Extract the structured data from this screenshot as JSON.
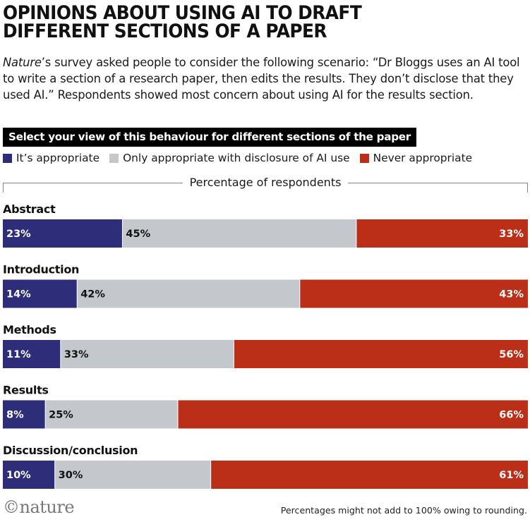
{
  "header": {
    "title_line1": "OPINIONS ABOUT USING AI TO DRAFT",
    "title_line2": "DIFFERENT SECTIONS OF A PAPER",
    "intro_italic": "Nature",
    "intro_rest": "’s survey asked people to consider the following scenario: “Dr Bloggs uses an AI tool to write a section of a research paper, then edits the results. They don’t disclose that they used AI.” Respondents showed most concern about using AI for the results section."
  },
  "question": "Select your view of this behaviour for different sections of the paper",
  "legend": [
    {
      "label": "It’s appropriate",
      "color": "#2d2d7a"
    },
    {
      "label": "Only appropriate with disclosure of AI use",
      "color": "#c4c8cc"
    },
    {
      "label": "Never appropriate",
      "color": "#bb2e18"
    }
  ],
  "footer": {
    "logo": "©nature",
    "note": "Percentages might not add to 100% owing to rounding."
  },
  "chart_data": {
    "type": "bar",
    "orientation": "horizontal",
    "stacked": true,
    "xlabel": "Percentage of respondents",
    "categories": [
      "Abstract",
      "Introduction",
      "Methods",
      "Results",
      "Discussion/conclusion"
    ],
    "series": [
      {
        "name": "It’s appropriate",
        "color": "#2d2d7a",
        "label_color": "#ffffff",
        "values": [
          23,
          14,
          11,
          8,
          10
        ]
      },
      {
        "name": "Only appropriate with disclosure of AI use",
        "color": "#c4c8cc",
        "label_color": "#111111",
        "values": [
          45,
          42,
          33,
          25,
          30
        ]
      },
      {
        "name": "Never appropriate",
        "color": "#bb2e18",
        "label_color": "#ffffff",
        "values": [
          33,
          43,
          56,
          66,
          61
        ]
      }
    ]
  }
}
